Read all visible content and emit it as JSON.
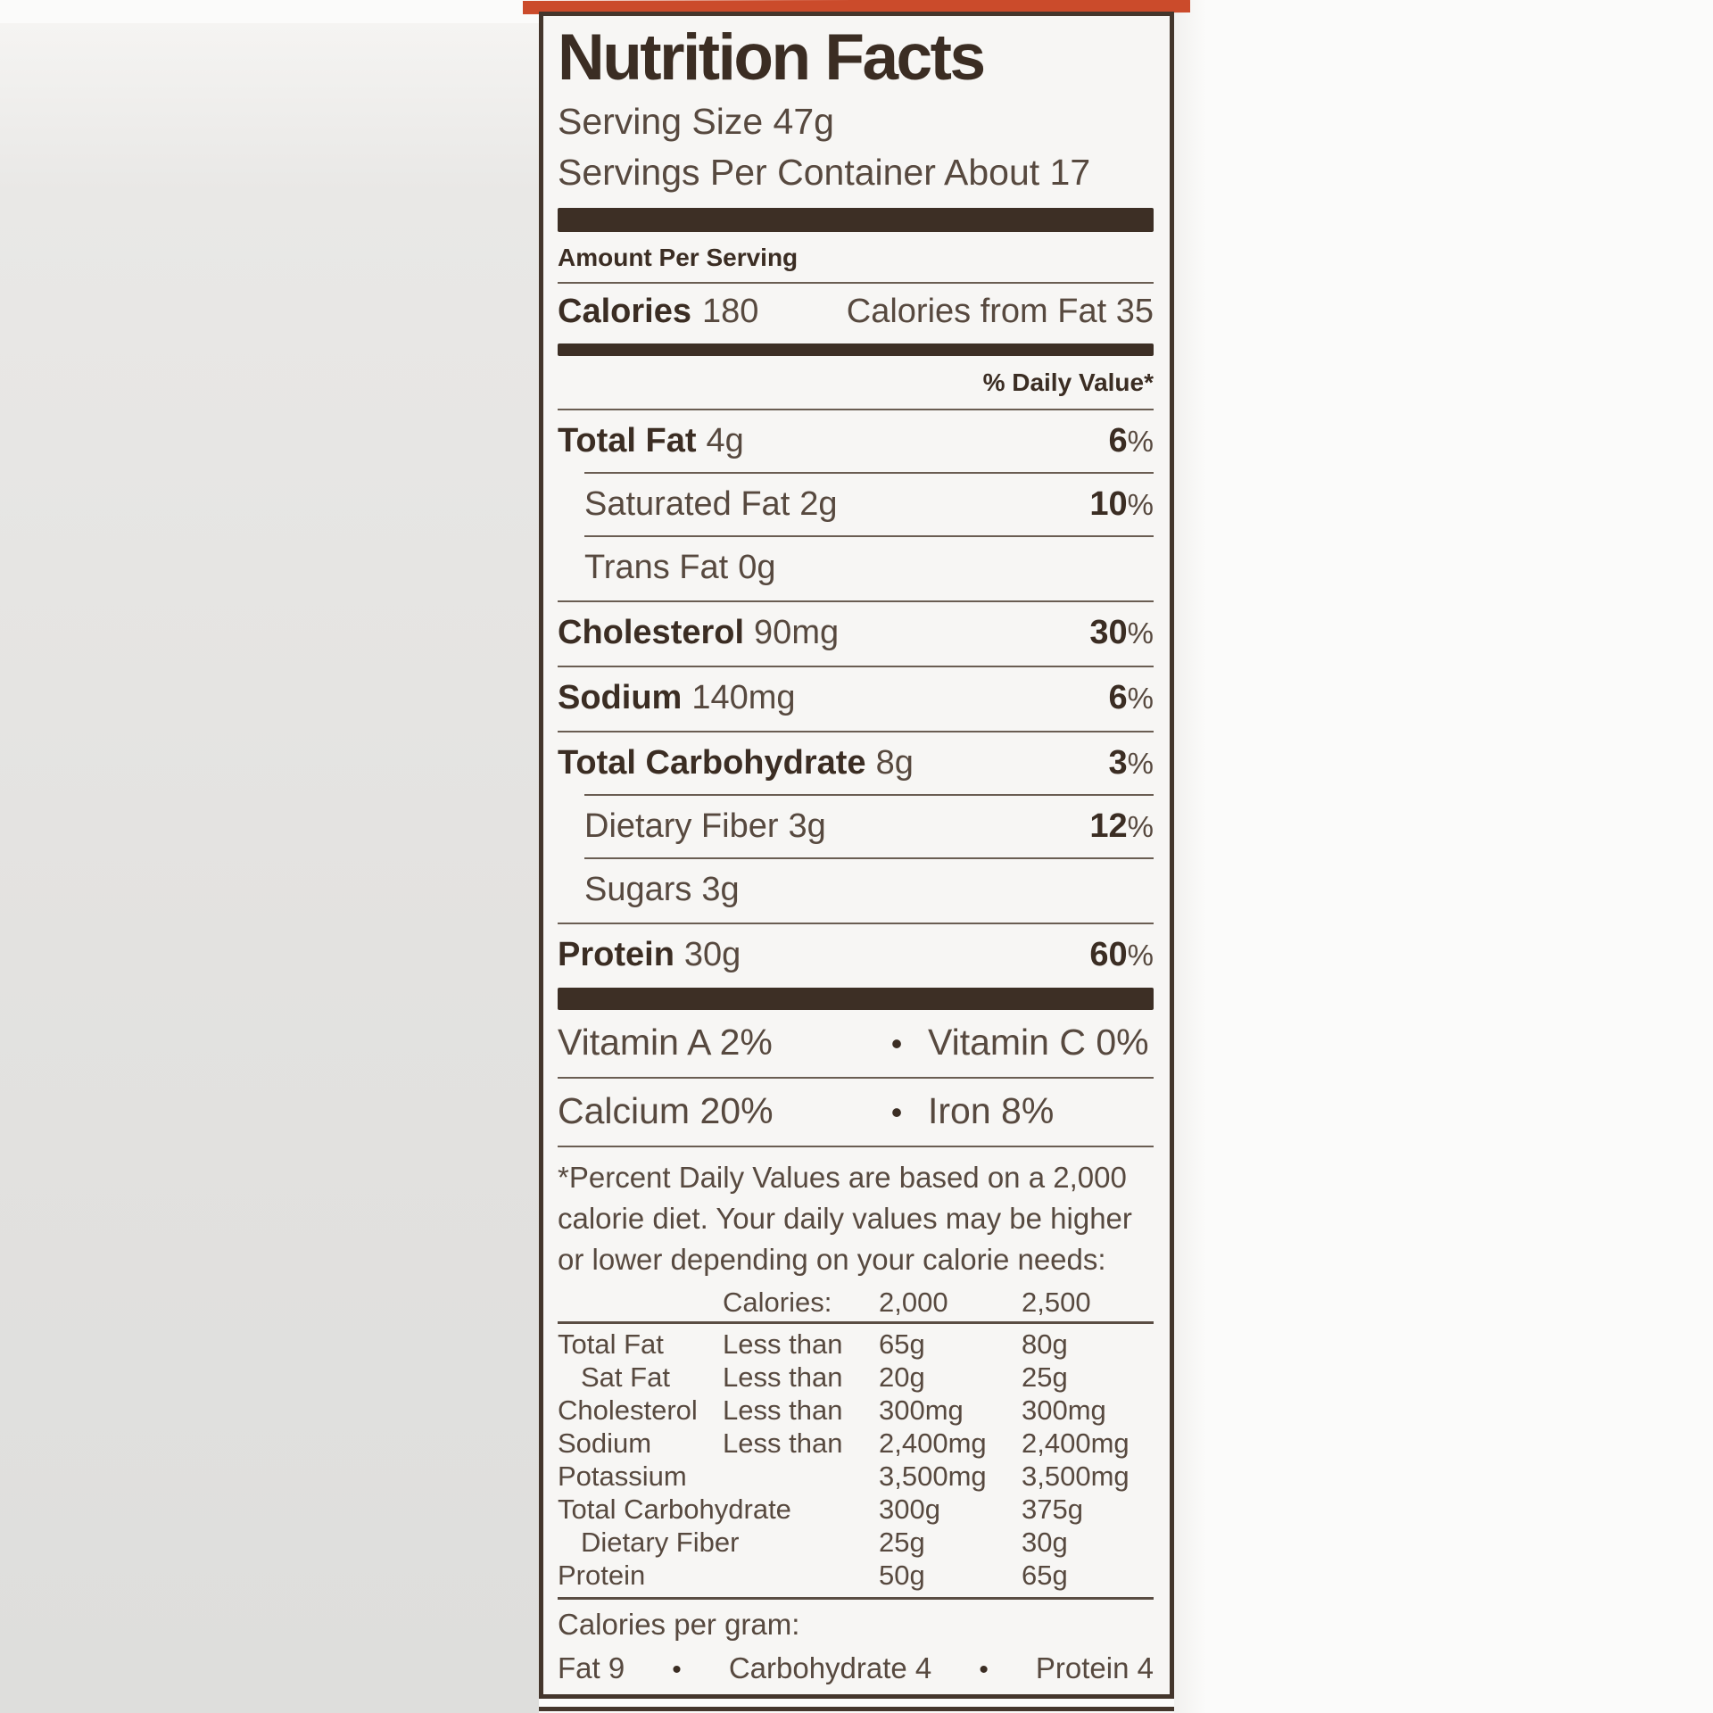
{
  "colors": {
    "accent_orange": "#cb4b2b",
    "text_bold": "#3b2d23",
    "text_regular": "#57493f",
    "panel_bg": "#f7f6f4",
    "rule": "#6a5d52"
  },
  "label": {
    "title": "Nutrition Facts",
    "serving_size": "Serving Size 47g",
    "servings_per_container": "Servings Per Container About 17",
    "amount_per_serving": "Amount Per Serving",
    "calories_label": "Calories",
    "calories_value": "180",
    "calories_from_fat": "Calories from Fat 35",
    "daily_value_header": "% Daily Value*",
    "pct_sign": "%",
    "bullet": "•",
    "nutrients": [
      {
        "name": "Total Fat",
        "amount": "4g",
        "dv": "6"
      },
      {
        "name": "Saturated Fat",
        "amount": "2g",
        "dv": "10"
      },
      {
        "name": "Trans Fat",
        "amount": "0g",
        "dv": ""
      },
      {
        "name": "Cholesterol",
        "amount": "90mg",
        "dv": "30"
      },
      {
        "name": "Sodium",
        "amount": "140mg",
        "dv": "6"
      },
      {
        "name": "Total Carbohydrate",
        "amount": "8g",
        "dv": "3"
      },
      {
        "name": "Dietary Fiber",
        "amount": "3g",
        "dv": "12"
      },
      {
        "name": "Sugars",
        "amount": "3g",
        "dv": ""
      },
      {
        "name": "Protein",
        "amount": "30g",
        "dv": "60"
      }
    ],
    "vitamins": [
      {
        "left": "Vitamin A 2%",
        "right": "Vitamin C 0%"
      },
      {
        "left": "Calcium 20%",
        "right": "Iron 8%"
      }
    ],
    "footnote_lines": [
      "*Percent Daily Values are based on a 2,000",
      "calorie diet. Your daily values may be higher",
      "or lower depending on your calorie needs:"
    ],
    "dv_table": {
      "header": {
        "c2": "Calories:",
        "c3": "2,000",
        "c4": "2,500"
      },
      "rows": [
        {
          "c1": "Total Fat",
          "c2": "Less than",
          "c3": "65g",
          "c4": "80g"
        },
        {
          "c1": "Sat Fat",
          "c2": "Less than",
          "c3": "20g",
          "c4": "25g"
        },
        {
          "c1": "Cholesterol",
          "c2": "Less than",
          "c3": "300mg",
          "c4": "300mg"
        },
        {
          "c1": "Sodium",
          "c2": "Less than",
          "c3": "2,400mg",
          "c4": "2,400mg"
        },
        {
          "c1": "Potassium",
          "c2": "",
          "c3": "3,500mg",
          "c4": "3,500mg"
        },
        {
          "c1": "Total Carbohydrate",
          "c2": "",
          "c3": "300g",
          "c4": "375g"
        },
        {
          "c1": "Dietary Fiber",
          "c2": "",
          "c3": "25g",
          "c4": "30g"
        },
        {
          "c1": "Protein",
          "c2": "",
          "c3": "50g",
          "c4": "65g"
        }
      ]
    },
    "calories_per_gram_label": "Calories per gram:",
    "calories_per_gram_items": [
      "Fat 9",
      "Carbohydrate 4",
      "Protein 4"
    ]
  }
}
